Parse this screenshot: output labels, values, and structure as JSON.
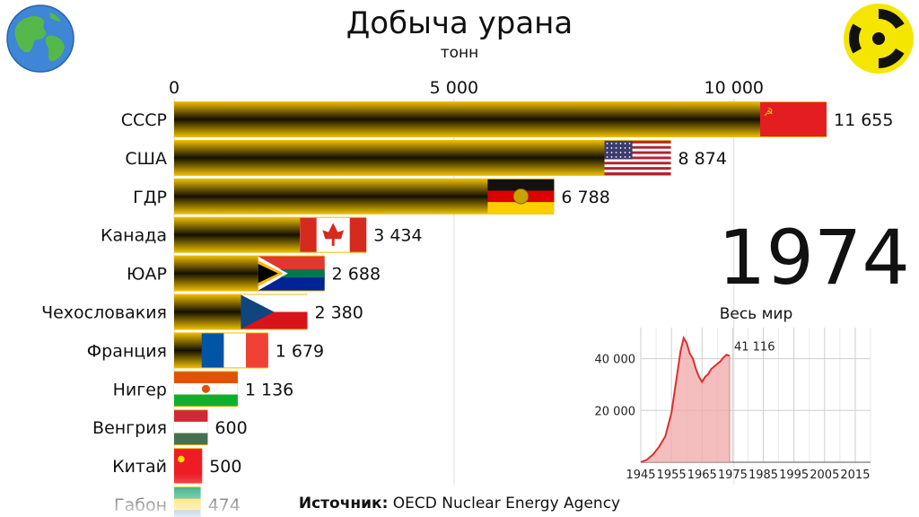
{
  "header": {
    "title": "Добыча урана",
    "subtitle": "тонн",
    "year": "1974",
    "source_label": "Источник:",
    "source_text": "OECD Nuclear Energy Agency"
  },
  "icons": {
    "left": "globe-icon",
    "right": "radiation-icon"
  },
  "colors": {
    "bar": "#f2c200",
    "bar_dark": "#141000",
    "world_line": "#d93030",
    "world_fill": "#f2a8a8"
  },
  "chart_data": [
    {
      "type": "bar",
      "orientation": "horizontal",
      "title": "Добыча урана",
      "subtitle": "тонн",
      "categories": [
        "СССР",
        "США",
        "ГДР",
        "Канада",
        "ЮАР",
        "Чехословакия",
        "Франция",
        "Нигер",
        "Венгрия",
        "Китай",
        "Габон"
      ],
      "values": [
        11655,
        8874,
        6788,
        3434,
        2688,
        2380,
        1679,
        1136,
        600,
        500,
        474
      ],
      "value_labels": [
        "11 655",
        "8 874",
        "6 788",
        "3 434",
        "2 688",
        "2 380",
        "1 679",
        "1 136",
        "600",
        "500",
        "474"
      ],
      "flags": [
        "ussr",
        "usa",
        "gdr",
        "canada",
        "south-africa",
        "czechoslovakia",
        "france",
        "niger",
        "hungary",
        "china",
        "gabon"
      ],
      "x_ticks": [
        0,
        5000,
        10000
      ],
      "x_tick_labels": [
        "0",
        "5 000",
        "10 000"
      ],
      "xlim": [
        0,
        11655
      ],
      "axis_position": "top",
      "grid": true
    },
    {
      "type": "area",
      "title": "Весь мир",
      "x": [
        1945,
        1947,
        1949,
        1951,
        1953,
        1955,
        1957,
        1958,
        1959,
        1960,
        1961,
        1962,
        1963,
        1964,
        1965,
        1966,
        1967,
        1968,
        1969,
        1970,
        1971,
        1972,
        1973,
        1974
      ],
      "y": [
        0,
        1000,
        3000,
        6000,
        10000,
        19000,
        35000,
        43000,
        48000,
        46000,
        42000,
        40000,
        36000,
        33000,
        31000,
        33000,
        34000,
        36000,
        37000,
        38000,
        39000,
        40500,
        41500,
        41116
      ],
      "last_value_label": "41 116",
      "y_ticks": [
        20000,
        40000
      ],
      "y_tick_labels": [
        "20 000",
        "40 000"
      ],
      "x_ticks": [
        1945,
        1955,
        1965,
        1975,
        1985,
        1995,
        2005,
        2015
      ],
      "x_tick_labels": [
        "1945",
        "1955",
        "1965",
        "1975",
        "1985",
        "1995",
        "2005",
        "2015"
      ],
      "xlim": [
        1945,
        2020
      ],
      "ylim": [
        0,
        52000
      ],
      "grid": true
    }
  ]
}
